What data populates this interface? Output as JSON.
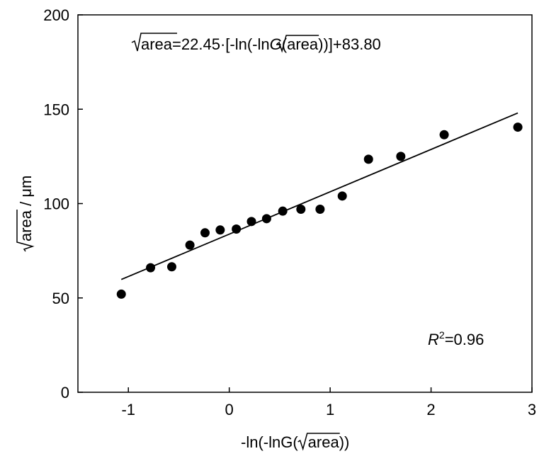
{
  "chart_data": {
    "type": "scatter",
    "xlim": [
      -1.5,
      3
    ],
    "ylim": [
      0,
      200
    ],
    "x_ticks": [
      -1,
      0,
      1,
      2,
      3
    ],
    "y_ticks": [
      0,
      50,
      100,
      150,
      200
    ],
    "xlabel": {
      "prefix": "-ln(-lnG(",
      "radical": "area",
      "suffix": "))"
    },
    "ylabel": {
      "radical": "area",
      "suffix": " / μm"
    },
    "grid": false,
    "legend": "none",
    "points": [
      {
        "x": -1.07,
        "y": 52
      },
      {
        "x": -0.78,
        "y": 66
      },
      {
        "x": -0.57,
        "y": 66.5
      },
      {
        "x": -0.39,
        "y": 78
      },
      {
        "x": -0.24,
        "y": 84.5
      },
      {
        "x": -0.09,
        "y": 86
      },
      {
        "x": 0.07,
        "y": 86.5
      },
      {
        "x": 0.22,
        "y": 90.5
      },
      {
        "x": 0.37,
        "y": 92
      },
      {
        "x": 0.53,
        "y": 96
      },
      {
        "x": 0.71,
        "y": 97
      },
      {
        "x": 0.9,
        "y": 97
      },
      {
        "x": 1.12,
        "y": 104
      },
      {
        "x": 1.38,
        "y": 123.5
      },
      {
        "x": 1.7,
        "y": 125
      },
      {
        "x": 2.13,
        "y": 136.5
      },
      {
        "x": 2.86,
        "y": 140.5
      }
    ],
    "fit": {
      "slope": 22.45,
      "intercept": 83.8,
      "x_range": [
        -1.07,
        2.86
      ]
    },
    "annotations": {
      "equation": {
        "radical1": "area",
        "part1": "=22.45·[-ln(-ln",
        "g_italic": "G",
        "part2": "(",
        "radical2": "area",
        "part3": "))]+83.80"
      },
      "r2": {
        "r_italic": "R",
        "sup": "2",
        "value": "=0.96"
      }
    },
    "colors": {
      "points": "#000000",
      "line": "#000000",
      "axes": "#000000"
    }
  }
}
